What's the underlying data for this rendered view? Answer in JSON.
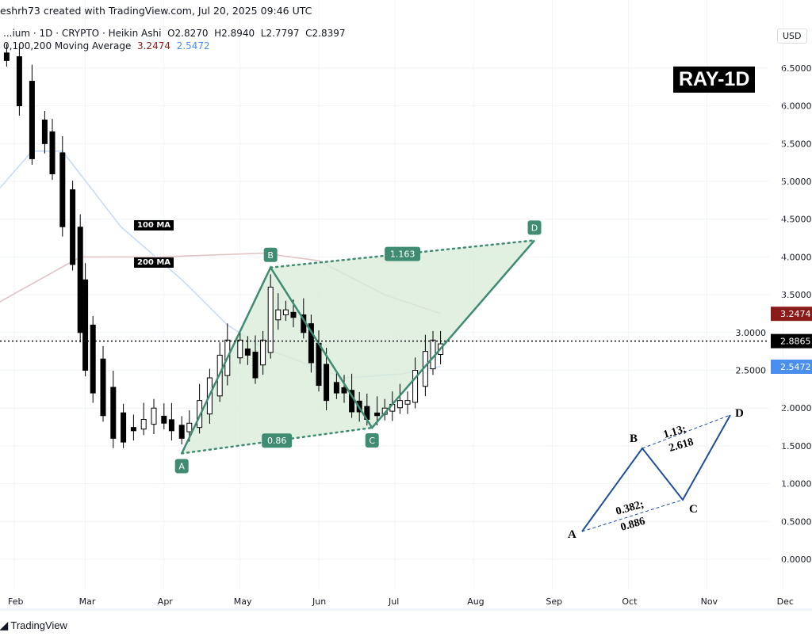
{
  "header": {
    "credit": "eshrh73 created with TradingView.com, Jul 20, 2025 09:46 UTC",
    "symbol_line": "...ium · 1D · CRYPTO · Heikin Ashi",
    "ohlc": {
      "open": "O2.8270",
      "high": "H2.8940",
      "low": "L2.7797",
      "close": "C2.8397"
    },
    "ma_line": "0,100,200 Moving Average",
    "ma200_value": "3.2474",
    "ma100_value": "2.5472"
  },
  "currency": "USD",
  "badge": "RAY-1D",
  "ma_labels": {
    "ma100": "100 MA",
    "ma200": "200 MA"
  },
  "footer": {
    "logo_text": "TradingView"
  },
  "colors": {
    "ma200": "#8b1a1a",
    "ma100": "#4a8ff0",
    "pattern": "#3f8c73",
    "pattern_fill": "#d9ecd9",
    "inset": "#1f4e9e"
  },
  "chart_data": {
    "type": "candlestick",
    "style": "Heikin Ashi",
    "y_ticks": [
      "6.5000",
      "6.0000",
      "5.5000",
      "5.0000",
      "4.5000",
      "4.0000",
      "3.5000",
      "3.0000",
      "2.5000",
      "2.0000",
      "1.5000",
      "1.0000",
      "0.5000",
      "0.0000"
    ],
    "ylim": [
      0,
      6.5
    ],
    "x_ticks": [
      "Feb",
      "Mar",
      "Apr",
      "May",
      "Jun",
      "Jul",
      "Aug",
      "Sep",
      "Oct",
      "Nov",
      "Dec"
    ],
    "price_tags": {
      "ma200": "3.2474",
      "current": "2.8865",
      "ma100": "2.5472"
    },
    "current_price": 2.8865,
    "closes": [
      [
        "2025-01-29",
        6.6
      ],
      [
        "2025-02-03",
        6.0
      ],
      [
        "2025-02-08",
        5.3
      ],
      [
        "2025-02-13",
        5.5
      ],
      [
        "2025-02-16",
        5.1
      ],
      [
        "2025-02-20",
        4.4
      ],
      [
        "2025-02-24",
        3.9
      ],
      [
        "2025-02-27",
        3.0
      ],
      [
        "2025-03-01",
        2.5
      ],
      [
        "2025-03-04",
        2.2
      ],
      [
        "2025-03-08",
        1.9
      ],
      [
        "2025-03-12",
        1.6
      ],
      [
        "2025-03-16",
        1.55
      ],
      [
        "2025-03-20",
        1.7
      ],
      [
        "2025-03-24",
        1.85
      ],
      [
        "2025-03-28",
        2.0
      ],
      [
        "2025-04-01",
        1.8
      ],
      [
        "2025-04-04",
        1.7
      ],
      [
        "2025-04-08",
        1.6
      ],
      [
        "2025-04-11",
        1.8
      ],
      [
        "2025-04-15",
        2.1
      ],
      [
        "2025-04-19",
        2.4
      ],
      [
        "2025-04-23",
        2.7
      ],
      [
        "2025-04-26",
        2.9
      ],
      [
        "2025-05-01",
        2.9
      ],
      [
        "2025-05-04",
        2.7
      ],
      [
        "2025-05-07",
        2.4
      ],
      [
        "2025-05-10",
        2.9
      ],
      [
        "2025-05-13",
        3.6
      ],
      [
        "2025-05-16",
        3.3
      ],
      [
        "2025-05-19",
        3.3
      ],
      [
        "2025-05-22",
        3.2
      ],
      [
        "2025-05-26",
        3.0
      ],
      [
        "2025-05-29",
        2.6
      ],
      [
        "2025-06-01",
        2.3
      ],
      [
        "2025-06-04",
        2.1
      ],
      [
        "2025-06-08",
        2.2
      ],
      [
        "2025-06-11",
        2.2
      ],
      [
        "2025-06-14",
        1.95
      ],
      [
        "2025-06-17",
        1.95
      ],
      [
        "2025-06-20",
        1.85
      ],
      [
        "2025-06-24",
        1.9
      ],
      [
        "2025-06-27",
        2.0
      ],
      [
        "2025-06-30",
        2.05
      ],
      [
        "2025-07-03",
        2.1
      ],
      [
        "2025-07-06",
        2.1
      ],
      [
        "2025-07-09",
        2.5
      ],
      [
        "2025-07-13",
        2.75
      ],
      [
        "2025-07-16",
        2.9
      ],
      [
        "2025-07-19",
        2.85
      ]
    ],
    "ma100": [
      [
        "2025-01-26",
        4.9
      ],
      [
        "2025-02-08",
        5.4
      ],
      [
        "2025-02-20",
        5.4
      ],
      [
        "2025-03-15",
        4.4
      ],
      [
        "2025-04-08",
        3.7
      ],
      [
        "2025-04-26",
        3.1
      ],
      [
        "2025-05-10",
        2.8
      ],
      [
        "2025-05-26",
        2.6
      ],
      [
        "2025-06-11",
        2.4
      ],
      [
        "2025-07-03",
        2.45
      ],
      [
        "2025-07-19",
        2.55
      ]
    ],
    "ma200": [
      [
        "2025-01-26",
        3.4
      ],
      [
        "2025-02-27",
        4.0
      ],
      [
        "2025-03-30",
        4.0
      ],
      [
        "2025-05-10",
        4.05
      ],
      [
        "2025-06-01",
        3.95
      ],
      [
        "2025-06-27",
        3.5
      ],
      [
        "2025-07-19",
        3.25
      ]
    ],
    "harmonic_pattern": {
      "points": [
        {
          "label": "A",
          "date": "2025-04-08",
          "price": 1.4
        },
        {
          "label": "B",
          "date": "2025-05-13",
          "price": 3.86
        },
        {
          "label": "C",
          "date": "2025-06-22",
          "price": 1.74
        },
        {
          "label": "D",
          "date": "2025-08-25",
          "price": 4.22
        }
      ],
      "ratio_ac": "0.86",
      "ratio_bd": "1.163"
    }
  },
  "inset": {
    "points": [
      "A",
      "B",
      "C",
      "D"
    ],
    "ratio_ac": [
      "0.382;",
      "0.886"
    ],
    "ratio_bd": [
      "1.13;",
      "2.618"
    ]
  }
}
